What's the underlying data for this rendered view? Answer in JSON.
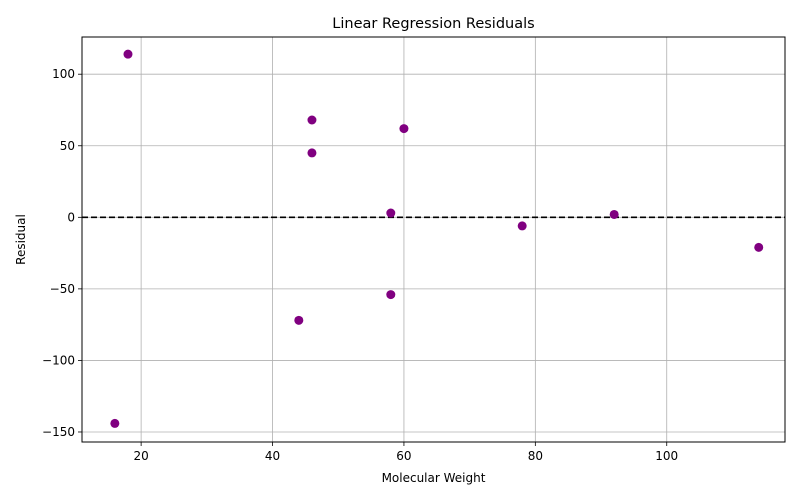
{
  "chart_data": {
    "type": "scatter",
    "title": "Linear Regression Residuals",
    "xlabel": "Molecular Weight",
    "ylabel": "Residual",
    "xlim": [
      11,
      118
    ],
    "ylim": [
      -157,
      126
    ],
    "xticks": [
      20,
      40,
      60,
      80,
      100
    ],
    "yticks": [
      -150,
      -100,
      -50,
      0,
      50,
      100
    ],
    "grid": true,
    "reference_line": {
      "y": 0,
      "style": "dashed",
      "color": "#000000"
    },
    "marker_color": "#800080",
    "points": [
      {
        "x": 16,
        "y": -144
      },
      {
        "x": 18,
        "y": 114
      },
      {
        "x": 44,
        "y": -72
      },
      {
        "x": 46,
        "y": 68
      },
      {
        "x": 46,
        "y": 45
      },
      {
        "x": 58,
        "y": 3
      },
      {
        "x": 58,
        "y": -54
      },
      {
        "x": 60,
        "y": 62
      },
      {
        "x": 78,
        "y": -6
      },
      {
        "x": 92,
        "y": 2
      },
      {
        "x": 114,
        "y": -21
      }
    ]
  }
}
